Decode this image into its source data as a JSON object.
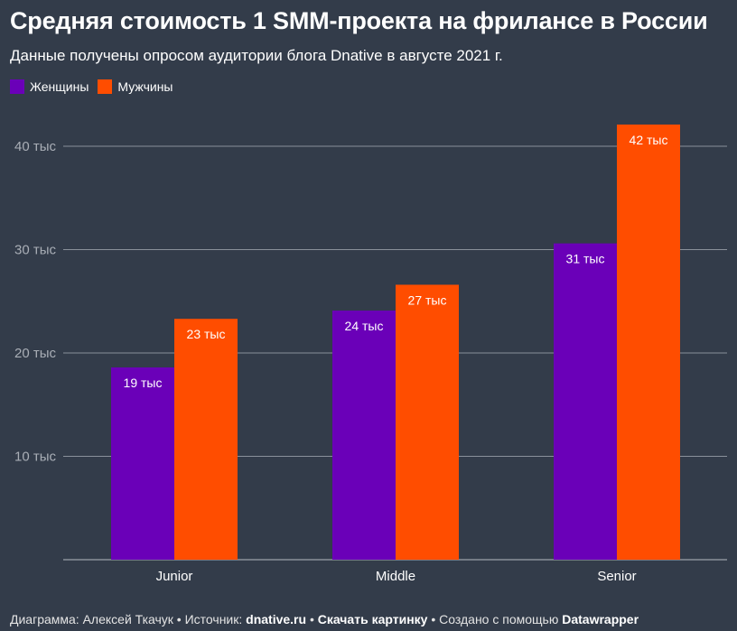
{
  "header": {
    "title": "Средняя стоимость 1 SMM-проекта на фрилансе в России",
    "subtitle": "Данные получены опросом аудитории блога Dnative в августе 2021 г."
  },
  "legend": [
    {
      "label": "Женщины",
      "color": "#6a00b8"
    },
    {
      "label": "Мужчины",
      "color": "#ff4d00"
    }
  ],
  "chart_data": {
    "type": "bar",
    "title": "Средняя стоимость 1 SMM-проекта на фрилансе в России",
    "subtitle": "Данные получены опросом аудитории блога Dnative в августе 2021 г.",
    "categories": [
      "Junior",
      "Middle",
      "Senior"
    ],
    "series": [
      {
        "name": "Женщины",
        "color": "#6a00b8",
        "values": [
          18600,
          24100,
          30600
        ],
        "labels": [
          "19 тыс",
          "24 тыс",
          "31 тыс"
        ]
      },
      {
        "name": "Мужчины",
        "color": "#ff4d00",
        "values": [
          23300,
          26600,
          42100
        ],
        "labels": [
          "23 тыс",
          "27 тыс",
          "42 тыс"
        ]
      }
    ],
    "y_ticks": [
      10000,
      20000,
      30000,
      40000
    ],
    "y_tick_labels": [
      "10 тыс",
      "20 тыс",
      "30 тыс",
      "40 тыс"
    ],
    "ylim": [
      0,
      45000
    ],
    "grid": true,
    "legend_position": "top-left"
  },
  "footer": {
    "author_prefix": "Диаграмма: Алексей Ткачук • Источник: ",
    "source": "dnative.ru",
    "sep1": " • ",
    "download": "Скачать картинку",
    "created_prefix": " • Создано с помощью ",
    "tool": "Datawrapper"
  }
}
